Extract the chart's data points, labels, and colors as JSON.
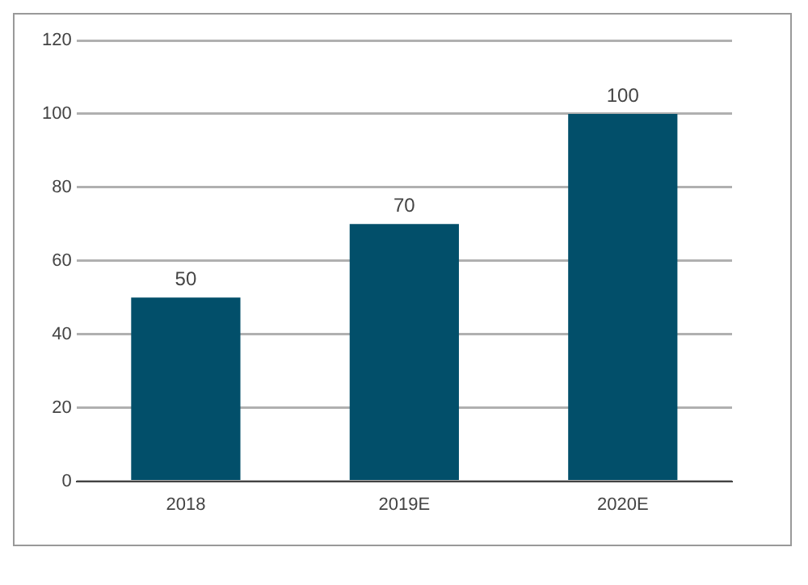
{
  "chart_data": {
    "type": "bar",
    "categories": [
      "2018",
      "2019E",
      "2020E"
    ],
    "values": [
      50,
      70,
      100
    ],
    "color": "#024f6a",
    "data_labels": true,
    "ylim": [
      0,
      120
    ],
    "yticks": [
      0,
      20,
      40,
      60,
      80,
      100,
      120
    ],
    "grid": "y",
    "legend": false
  }
}
